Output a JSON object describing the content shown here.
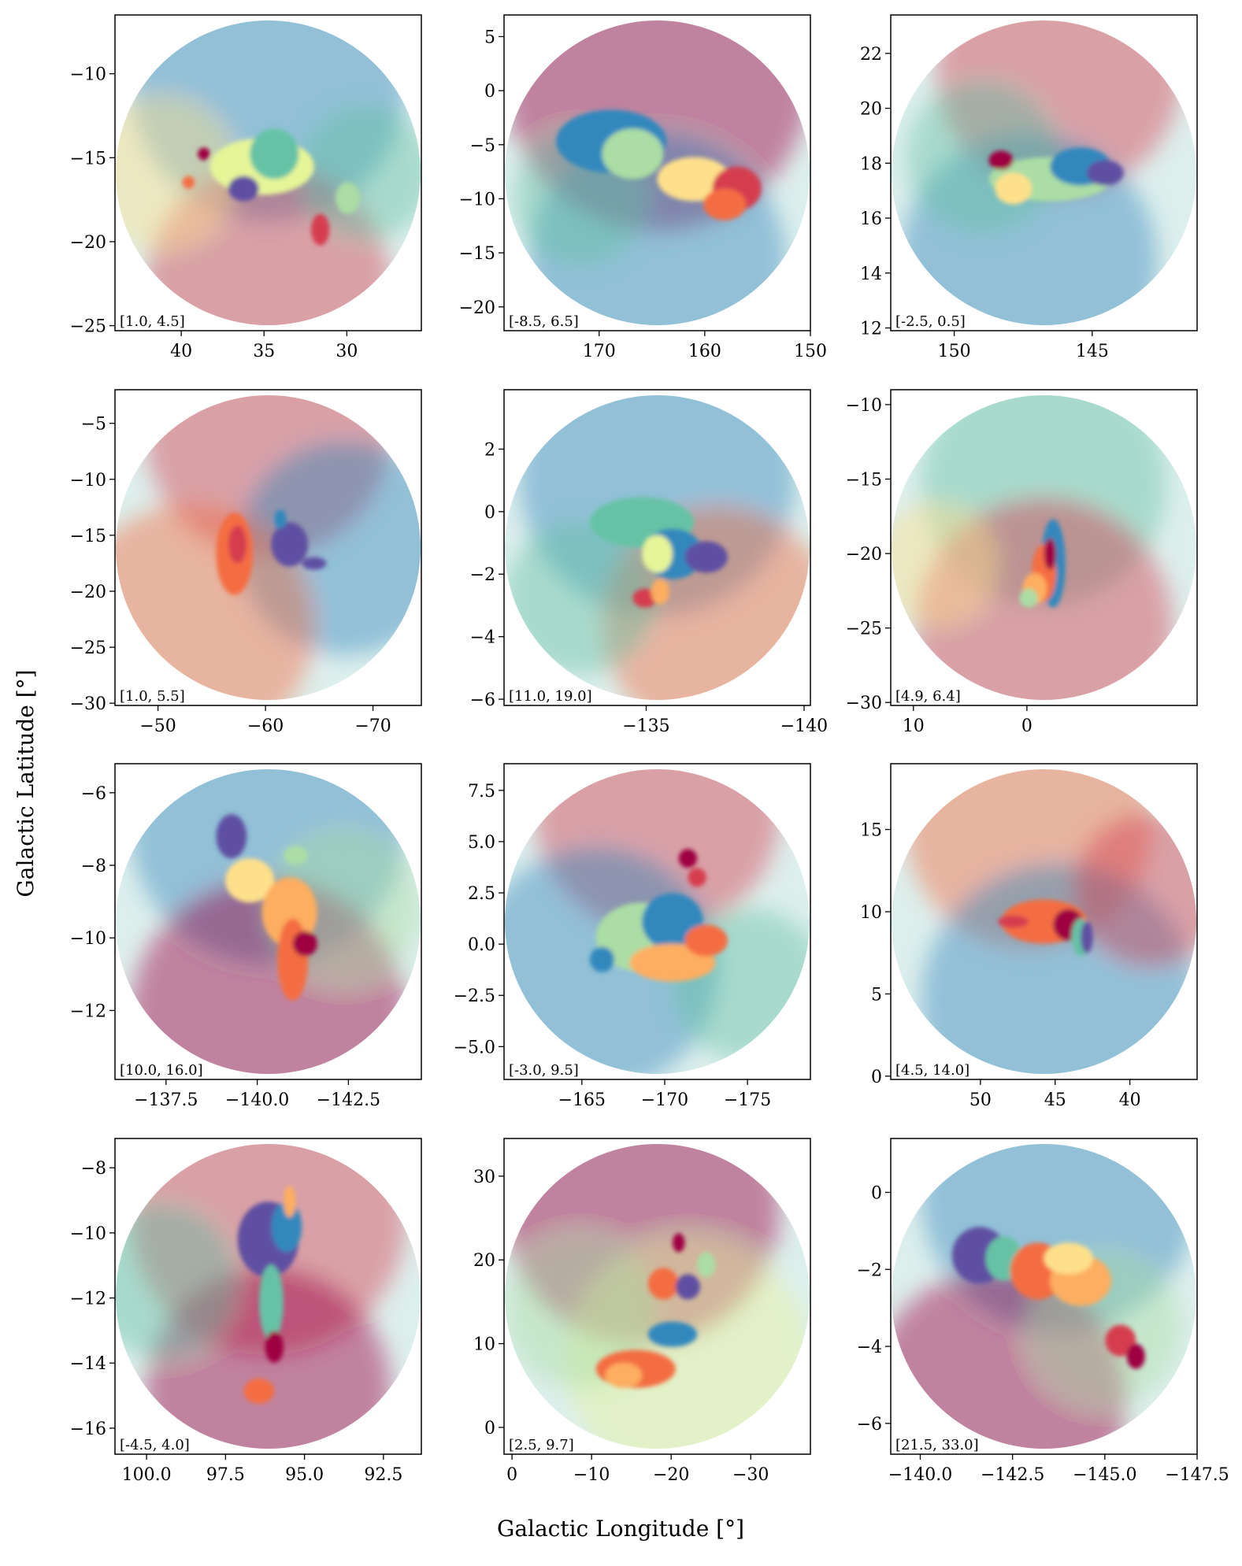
{
  "figure": {
    "xlabel": "Galactic Longitude [°]",
    "ylabel": "Galactic Latitude [°]"
  },
  "colors": {
    "colormap": [
      "#9e0142",
      "#d53e4f",
      "#f46d43",
      "#fdae61",
      "#fee08b",
      "#e6f598",
      "#abdda4",
      "#66c2a5",
      "#3288bd",
      "#5e4fa2"
    ],
    "background_alpha": 0.3
  },
  "chart_data": [
    {
      "type": "heatmap",
      "range_label": "[1.0, 4.5]",
      "xlim": [
        44,
        25.5
      ],
      "ylim": [
        -25.3,
        -6.5
      ],
      "xticks": [
        40,
        35,
        30
      ],
      "xtick_labels": [
        "40",
        "35",
        "30"
      ],
      "yticks": [
        -10,
        -15,
        -20,
        -25
      ],
      "ytick_labels": [
        "−10",
        "−15",
        "−20",
        "−25"
      ]
    },
    {
      "type": "heatmap",
      "range_label": "[-8.5, 6.5]",
      "xlim": [
        179,
        150
      ],
      "ylim": [
        -22.2,
        7
      ],
      "xticks": [
        170,
        160,
        150
      ],
      "xtick_labels": [
        "170",
        "160",
        "150"
      ],
      "yticks": [
        5,
        0,
        -5,
        -10,
        -15,
        -20
      ],
      "ytick_labels": [
        "5",
        "0",
        "−5",
        "−10",
        "−15",
        "−20"
      ]
    },
    {
      "type": "heatmap",
      "range_label": "[-2.5, 0.5]",
      "xlim": [
        152.3,
        141.2
      ],
      "ylim": [
        11.9,
        23.4
      ],
      "xticks": [
        150,
        145
      ],
      "xtick_labels": [
        "150",
        "145"
      ],
      "yticks": [
        22,
        20,
        18,
        16,
        14,
        12
      ],
      "ytick_labels": [
        "22",
        "20",
        "18",
        "16",
        "14",
        "12"
      ]
    },
    {
      "type": "heatmap",
      "range_label": "[1.0, 5.5]",
      "xlim": [
        -46,
        -74.5
      ],
      "ylim": [
        -30.2,
        -2
      ],
      "xticks": [
        -50,
        -60,
        -70
      ],
      "xtick_labels": [
        "−50",
        "−60",
        "−70"
      ],
      "yticks": [
        -5,
        -10,
        -15,
        -20,
        -25,
        -30
      ],
      "ytick_labels": [
        "−5",
        "−10",
        "−15",
        "−20",
        "−25",
        "−30"
      ]
    },
    {
      "type": "heatmap",
      "range_label": "[11.0, 19.0]",
      "xlim": [
        -130.5,
        -140.2
      ],
      "ylim": [
        -6.2,
        3.9
      ],
      "xticks": [
        -135,
        -140
      ],
      "xtick_labels": [
        "−135",
        "−140"
      ],
      "yticks": [
        2,
        0,
        -2,
        -4,
        -6
      ],
      "ytick_labels": [
        "2",
        "0",
        "−2",
        "−4",
        "−6"
      ]
    },
    {
      "type": "heatmap",
      "range_label": "[4.9, 6.4]",
      "xlim": [
        12,
        -15
      ],
      "ylim": [
        -30.2,
        -9
      ],
      "xticks": [
        10,
        0
      ],
      "xtick_labels": [
        "10",
        "0"
      ],
      "yticks": [
        -10,
        -15,
        -20,
        -25,
        -30
      ],
      "ytick_labels": [
        "−10",
        "−15",
        "−20",
        "−25",
        "−30"
      ]
    },
    {
      "type": "heatmap",
      "range_label": "[10.0, 16.0]",
      "xlim": [
        -136.1,
        -144.5
      ],
      "ylim": [
        -13.9,
        -5.2
      ],
      "xticks": [
        -137.5,
        -140,
        -142.5
      ],
      "xtick_labels": [
        "−137.5",
        "−140.0",
        "−142.5"
      ],
      "yticks": [
        -6,
        -8,
        -10,
        -12
      ],
      "ytick_labels": [
        "−6",
        "−8",
        "−10",
        "−12"
      ]
    },
    {
      "type": "heatmap",
      "range_label": "[-3.0, 9.5]",
      "xlim": [
        -160.3,
        -178.8
      ],
      "ylim": [
        -6.6,
        8.8
      ],
      "xticks": [
        -165,
        -170,
        -175
      ],
      "xtick_labels": [
        "−165",
        "−170",
        "−175"
      ],
      "yticks": [
        7.5,
        5,
        2.5,
        0,
        -2.5,
        -5
      ],
      "ytick_labels": [
        "7.5",
        "5.0",
        "2.5",
        "0.0",
        "−2.5",
        "−5.0"
      ]
    },
    {
      "type": "heatmap",
      "range_label": "[4.5, 14.0]",
      "xlim": [
        56,
        35.5
      ],
      "ylim": [
        -0.2,
        19
      ],
      "xticks": [
        50,
        45,
        40
      ],
      "xtick_labels": [
        "50",
        "45",
        "40"
      ],
      "yticks": [
        15,
        10,
        5,
        0
      ],
      "ytick_labels": [
        "15",
        "10",
        "5",
        "0"
      ]
    },
    {
      "type": "heatmap",
      "range_label": "[-4.5, 4.0]",
      "xlim": [
        101,
        91.3
      ],
      "ylim": [
        -16.8,
        -7.1
      ],
      "xticks": [
        100,
        97.5,
        95,
        92.5
      ],
      "xtick_labels": [
        "100.0",
        "97.5",
        "95.0",
        "92.5"
      ],
      "yticks": [
        -8,
        -10,
        -12,
        -14,
        -16
      ],
      "ytick_labels": [
        "−8",
        "−10",
        "−12",
        "−14",
        "−16"
      ]
    },
    {
      "type": "heatmap",
      "range_label": "[2.5, 9.7]",
      "xlim": [
        1,
        -37.5
      ],
      "ylim": [
        -3.2,
        34.5
      ],
      "xticks": [
        0,
        -10,
        -20,
        -30
      ],
      "xtick_labels": [
        "0",
        "−10",
        "−20",
        "−30"
      ],
      "yticks": [
        30,
        20,
        10,
        0
      ],
      "ytick_labels": [
        "30",
        "20",
        "10",
        "0"
      ]
    },
    {
      "type": "heatmap",
      "range_label": "[21.5, 33.0]",
      "xlim": [
        -139.2,
        -147.5
      ],
      "ylim": [
        -6.8,
        1.4
      ],
      "xticks": [
        -140,
        -142.5,
        -145,
        -147.5
      ],
      "xtick_labels": [
        "−140.0",
        "−142.5",
        "−145.0",
        "−147.5"
      ],
      "yticks": [
        0,
        -2,
        -4,
        -6
      ],
      "ytick_labels": [
        "0",
        "−2",
        "−4",
        "−6"
      ]
    }
  ]
}
